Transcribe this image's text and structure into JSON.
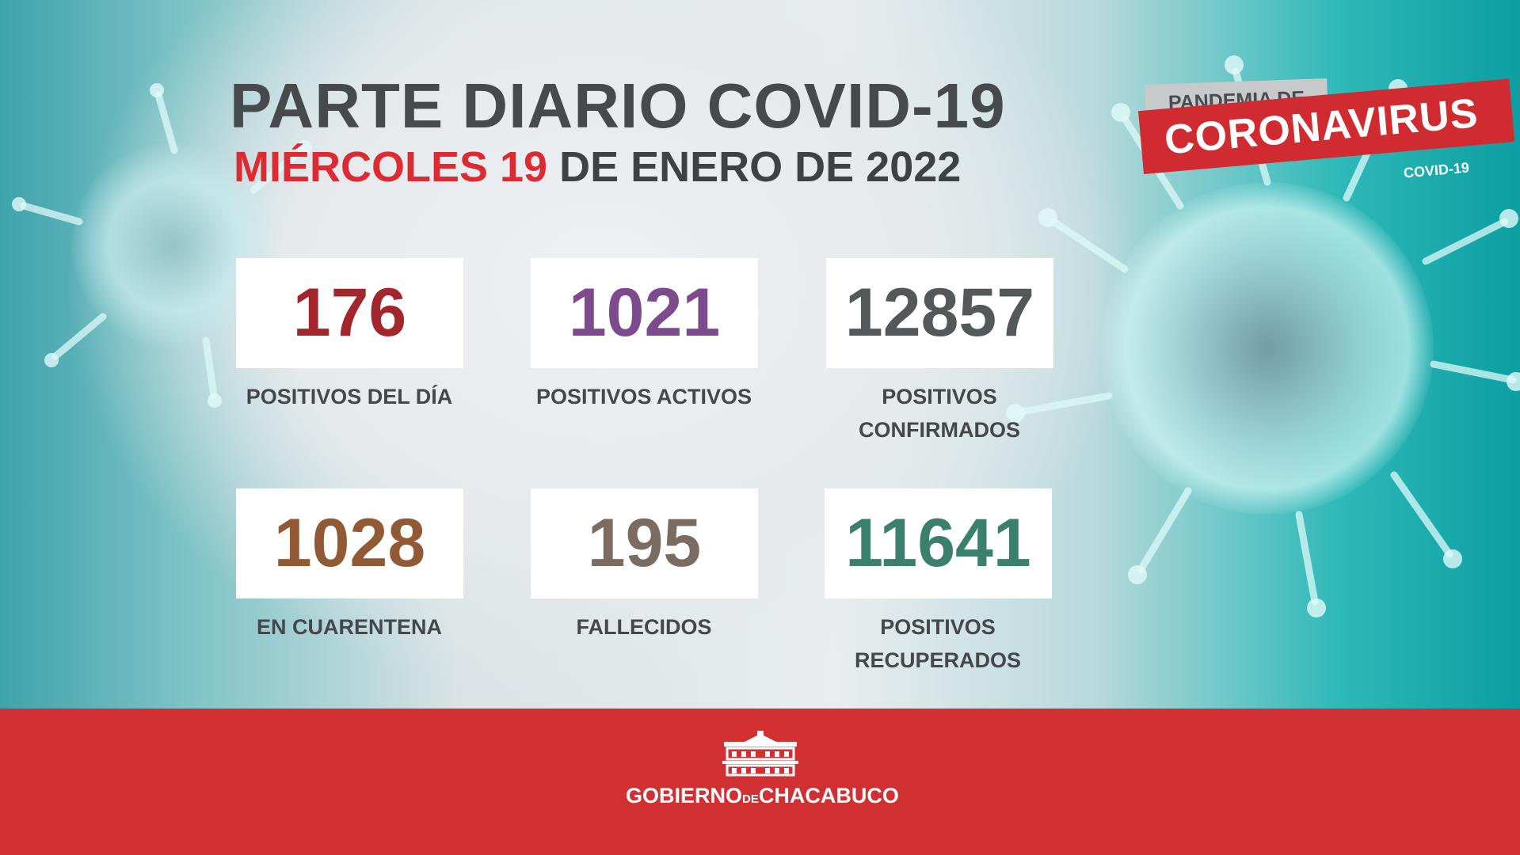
{
  "header": {
    "title": "PARTE DIARIO COVID-19",
    "date_prefix": "MIÉRCOLES 19",
    "date_suffix": "DE ENERO DE 2022"
  },
  "badge": {
    "top": "PANDEMIA DE",
    "main": "CORONAVIRUS",
    "sub": "COVID-19"
  },
  "stats": [
    {
      "value": "176",
      "label": "POSITIVOS DEL DÍA",
      "color": "#a3262d"
    },
    {
      "value": "1021",
      "label": "POSITIVOS ACTIVOS",
      "color": "#7c4a8d"
    },
    {
      "value": "12857",
      "label_line1": "POSITIVOS",
      "label_line2": "CONFIRMADOS",
      "color": "#55585a"
    },
    {
      "value": "1028",
      "label": "EN CUARENTENA",
      "color": "#925a34"
    },
    {
      "value": "195",
      "label": "FALLECIDOS",
      "color": "#7b6c62"
    },
    {
      "value": "11641",
      "label_line1": "POSITIVOS",
      "label_line2": "RECUPERADOS",
      "color": "#3b7f6d"
    }
  ],
  "footer": {
    "logo_text_1": "GOBIERNO",
    "logo_text_2": "DE",
    "logo_text_3": "CHACABUCO",
    "logo_icon": "government-building-icon"
  }
}
